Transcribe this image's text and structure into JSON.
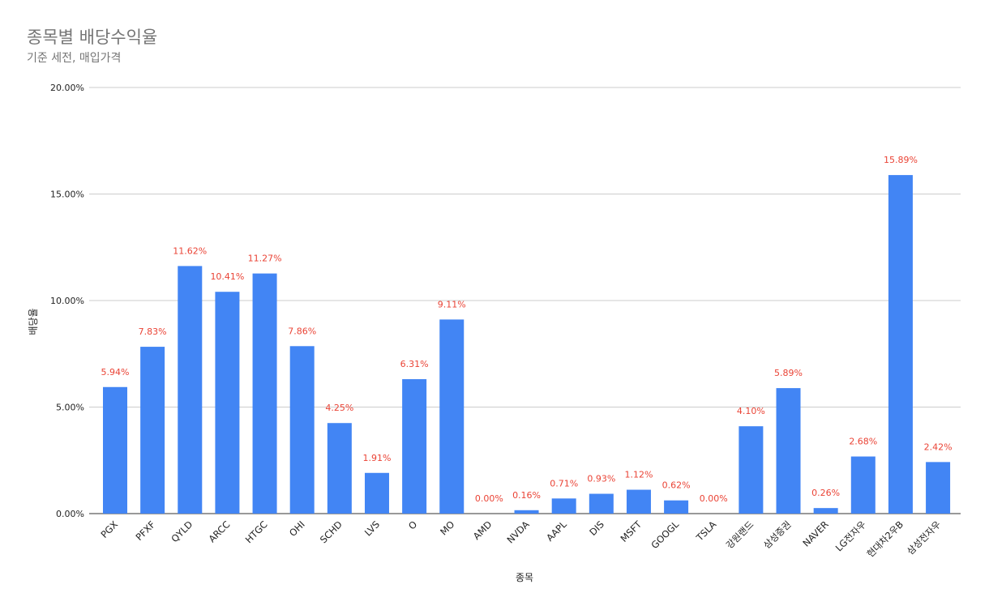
{
  "chart_data": {
    "type": "bar",
    "title": "종목별 배당수익율",
    "subtitle": "기준 세전, 매입가격",
    "xlabel": "종목",
    "ylabel": "배당율",
    "ylim": [
      0,
      20
    ],
    "yticks": [
      0,
      5,
      10,
      15,
      20
    ],
    "ytick_labels": [
      "0.00%",
      "5.00%",
      "10.00%",
      "15.00%",
      "20.00%"
    ],
    "grid": true,
    "legend": "none",
    "bar_color": "#4285f4",
    "label_color": "#ea4335",
    "categories": [
      "PGX",
      "PFXF",
      "QYLD",
      "ARCC",
      "HTGC",
      "OHI",
      "SCHD",
      "LVS",
      "O",
      "MO",
      "AMD",
      "NVDA",
      "AAPL",
      "DIS",
      "MSFT",
      "GOOGL",
      "TSLA",
      "강원랜드",
      "삼성증권",
      "NAVER",
      "LG전자우",
      "현대차2우B",
      "삼성전자우"
    ],
    "values": [
      5.94,
      7.83,
      11.62,
      10.41,
      11.27,
      7.86,
      4.25,
      1.91,
      6.31,
      9.11,
      0.0,
      0.16,
      0.71,
      0.93,
      1.12,
      0.62,
      0.0,
      4.1,
      5.89,
      0.26,
      2.68,
      15.89,
      2.42
    ],
    "value_labels": [
      "5.94%",
      "7.83%",
      "11.62%",
      "10.41%",
      "11.27%",
      "7.86%",
      "4.25%",
      "1.91%",
      "6.31%",
      "9.11%",
      "0.00%",
      "0.16%",
      "0.71%",
      "0.93%",
      "1.12%",
      "0.62%",
      "0.00%",
      "4.10%",
      "5.89%",
      "0.26%",
      "2.68%",
      "15.89%",
      "2.42%"
    ]
  }
}
